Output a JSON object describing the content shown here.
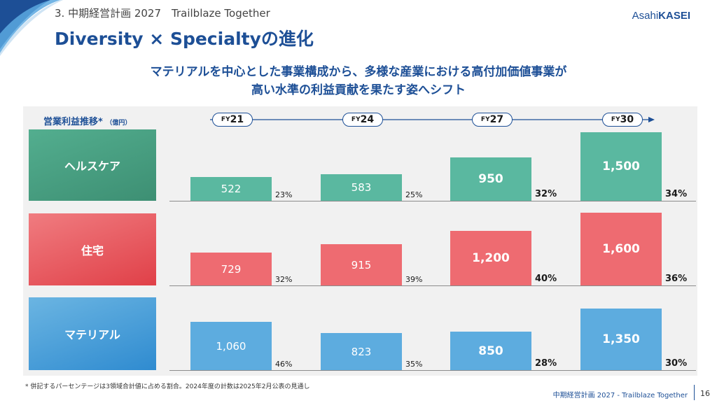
{
  "header": {
    "section_label": "3. 中期経営計画 2027　Trailblaze Together",
    "logo": {
      "text_regular": "Asahi",
      "text_bold": "KASEI"
    },
    "title": "Diversity × Specialtyの進化",
    "subtitle_line1": "マテリアルを中心とした事業構成から、多様な産業における高付加価値事業が",
    "subtitle_line2": "高い水準の利益貢献を果たす姿へシフト"
  },
  "chart_data": {
    "type": "bar",
    "title": "営業利益推移*",
    "unit": "（億円）",
    "categories": [
      "FY21",
      "FY24",
      "FY27",
      "FY30"
    ],
    "category_parts": [
      {
        "prefix": "FY",
        "num": "21"
      },
      {
        "prefix": "FY",
        "num": "24"
      },
      {
        "prefix": "FY",
        "num": "27"
      },
      {
        "prefix": "FY",
        "num": "30"
      }
    ],
    "series": [
      {
        "name": "ヘルスケア",
        "color": "#5ab8a0",
        "box_color_top": "#53ae8f",
        "box_color_bottom": "#3d8f73",
        "values": [
          522,
          583,
          950,
          1500
        ],
        "labels": [
          "522",
          "583",
          "950",
          "1,500"
        ],
        "shares": [
          "23%",
          "25%",
          "32%",
          "34%"
        ]
      },
      {
        "name": "住宅",
        "color": "#ee6b71",
        "box_color_top": "#f07c80",
        "box_color_bottom": "#e04048",
        "values": [
          729,
          915,
          1200,
          1600
        ],
        "labels": [
          "729",
          "915",
          "1,200",
          "1,600"
        ],
        "shares": [
          "32%",
          "39%",
          "40%",
          "36%"
        ]
      },
      {
        "name": "マテリアル",
        "color": "#5dacdf",
        "box_color_top": "#6bb5e2",
        "box_color_bottom": "#2f8bd0",
        "values": [
          1060,
          823,
          850,
          1350
        ],
        "labels": [
          "1,060",
          "823",
          "850",
          "1,350"
        ],
        "shares": [
          "46%",
          "35%",
          "28%",
          "30%"
        ]
      }
    ],
    "emphasis": [
      "regular",
      "regular",
      "bold",
      "bold"
    ],
    "grid": false
  },
  "footer": {
    "footnote": "* 併記するパーセンテージは3領域合計値に占める割合。2024年度の計数は2025年2月公表の見通し",
    "label": "中期経営計画 2027 - Trailblaze Together",
    "page_number": "16"
  }
}
